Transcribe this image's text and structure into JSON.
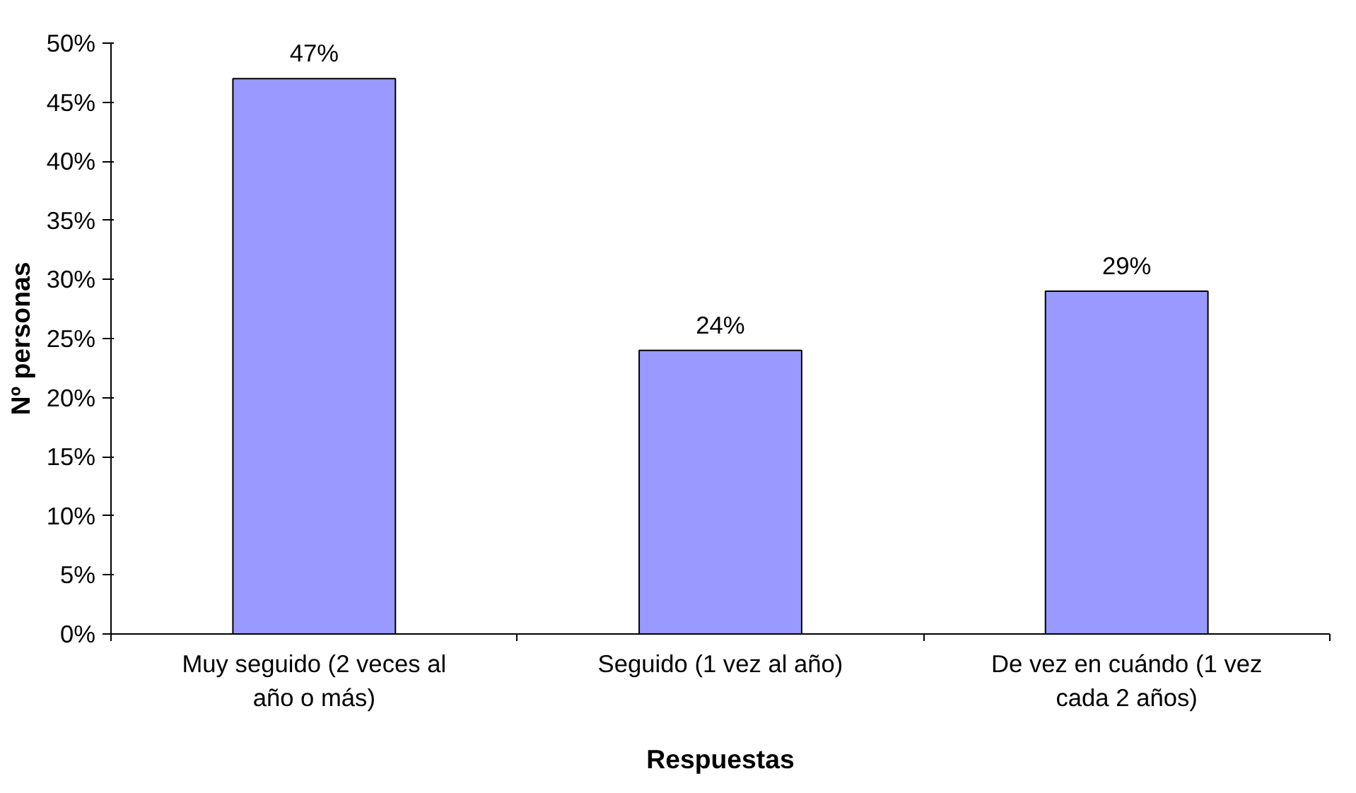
{
  "chart_data": {
    "type": "bar",
    "xlabel": "Respuestas",
    "ylabel": "Nº personas",
    "categories": [
      "Muy seguido (2 veces al año o más)",
      "Seguido (1 vez al año)",
      "De vez en cuándo (1 vez cada 2 años)"
    ],
    "values": [
      47,
      24,
      29
    ],
    "value_labels": [
      "47%",
      "24%",
      "29%"
    ],
    "color": "#9999ff",
    "ylim": [
      0,
      50
    ],
    "yticks": [
      {
        "value": 0,
        "label": "0%"
      },
      {
        "value": 5,
        "label": "5%"
      },
      {
        "value": 10,
        "label": "10%"
      },
      {
        "value": 15,
        "label": "15%"
      },
      {
        "value": 20,
        "label": "20%"
      },
      {
        "value": 25,
        "label": "25%"
      },
      {
        "value": 30,
        "label": "30%"
      },
      {
        "value": 35,
        "label": "35%"
      },
      {
        "value": 40,
        "label": "40%"
      },
      {
        "value": 45,
        "label": "45%"
      },
      {
        "value": 50,
        "label": "50%"
      }
    ],
    "grid": false
  }
}
